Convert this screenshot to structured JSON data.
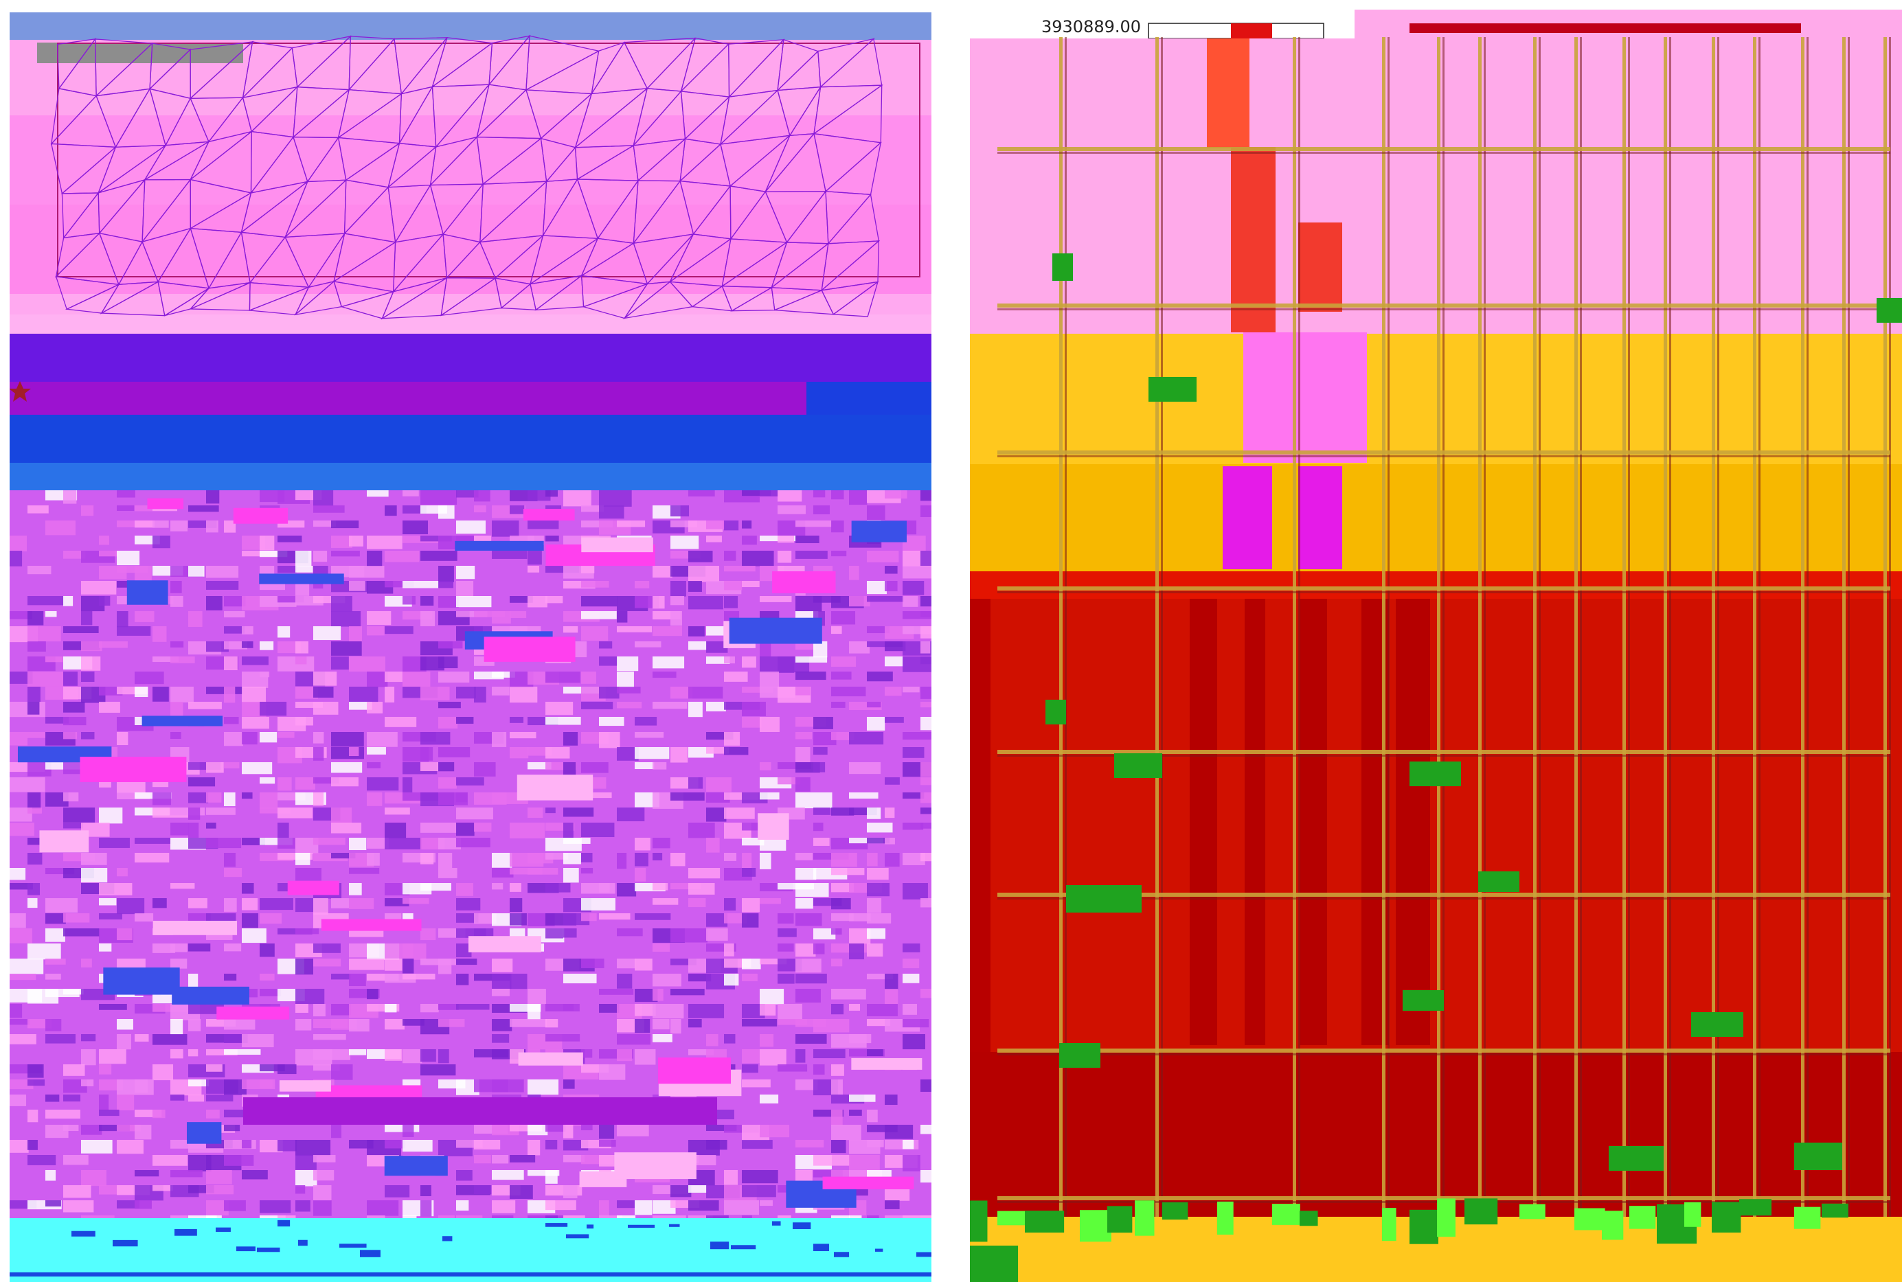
{
  "right_panel": {
    "coordinate_label": "3930889.00"
  },
  "colors": {
    "left_sky": "#7b97df",
    "left_mesh_light": "#ffaaf0",
    "left_mesh_mid": "#ff8aee",
    "left_mesh_edge": "#8a1bd8",
    "left_violet_band": "#6a1be0",
    "left_purple_band": "#9a14d2",
    "left_blue_band": "#1a46df",
    "left_texture_base": "#d05ef0",
    "left_texture_dark": "#8e2fd9",
    "left_cyan_base": "#54ffff",
    "right_pink_zone": "#ffaaea",
    "right_yellow_zone": "#ffc81e",
    "right_orange_zone": "#f5b500",
    "right_red_zone": "#d91a00",
    "right_darkred_zone": "#b80000",
    "right_green_marks": "#1fa31f",
    "right_magenta_zone": "#ff6df2",
    "right_grid_lines": "#c8a03a"
  },
  "icons": {
    "left_star": "star-icon"
  }
}
